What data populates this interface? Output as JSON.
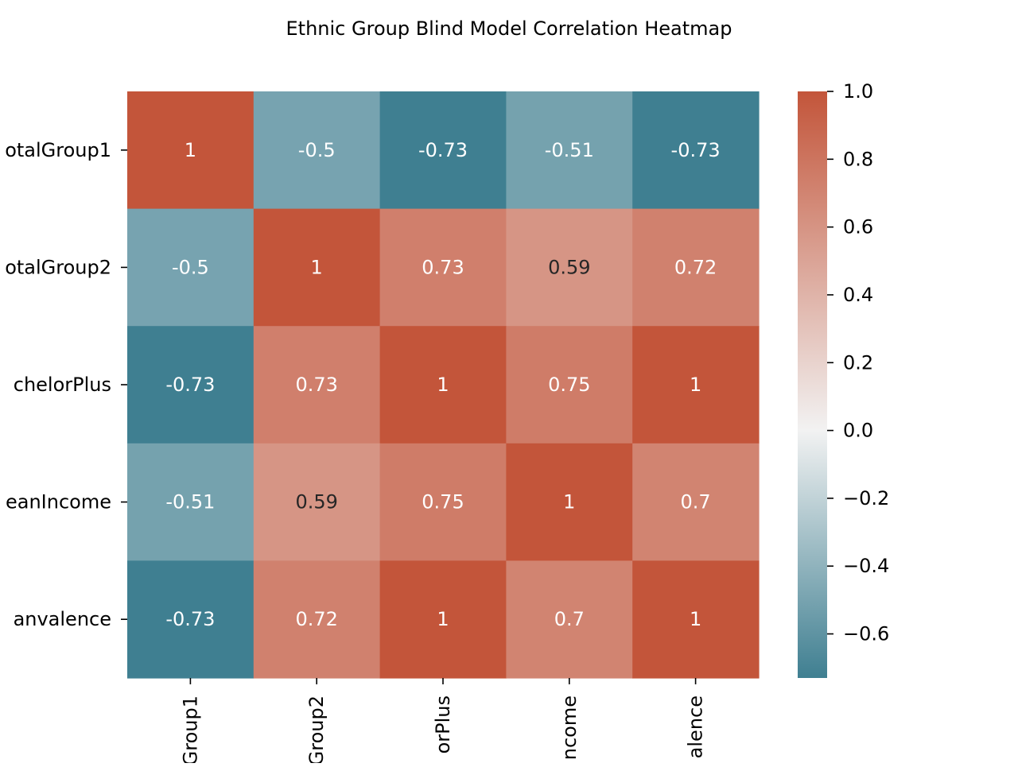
{
  "chart_data": {
    "type": "heatmap",
    "title": "Ethnic Group Blind Model Correlation Heatmap",
    "row_labels": [
      "otalGroup1",
      "otalGroup2",
      "chelorPlus",
      "eanIncome",
      "anvalence"
    ],
    "col_labels": [
      "Group1",
      "Group2",
      "orPlus",
      "ncome",
      "alence"
    ],
    "values": [
      [
        1,
        -0.5,
        -0.73,
        -0.51,
        -0.73
      ],
      [
        -0.5,
        1,
        0.73,
        0.59,
        0.72
      ],
      [
        -0.73,
        0.73,
        1,
        0.75,
        1
      ],
      [
        -0.51,
        0.59,
        0.75,
        1,
        0.7
      ],
      [
        -0.73,
        0.72,
        1,
        0.7,
        1
      ]
    ],
    "cell_labels": [
      [
        "1",
        "-0.5",
        "-0.73",
        "-0.51",
        "-0.73"
      ],
      [
        "-0.5",
        "1",
        "0.73",
        "0.59",
        "0.72"
      ],
      [
        "-0.73",
        "0.73",
        "1",
        "0.75",
        "1"
      ],
      [
        "-0.51",
        "0.59",
        "0.75",
        "1",
        "0.7"
      ],
      [
        "-0.73",
        "0.72",
        "1",
        "0.7",
        "1"
      ]
    ],
    "colorbar": {
      "range": [
        -0.73,
        1.0
      ],
      "ticks": [
        1.0,
        0.8,
        0.6,
        0.4,
        0.2,
        0.0,
        -0.2,
        -0.4,
        -0.6
      ],
      "tick_labels": [
        "1.0",
        "0.8",
        "0.6",
        "0.4",
        "0.2",
        "0.0",
        "−0.2",
        "−0.4",
        "−0.6"
      ]
    },
    "colormap": {
      "negative": "#3f7f91",
      "center": "#f2f2f2",
      "positive": "#c3553a"
    }
  }
}
